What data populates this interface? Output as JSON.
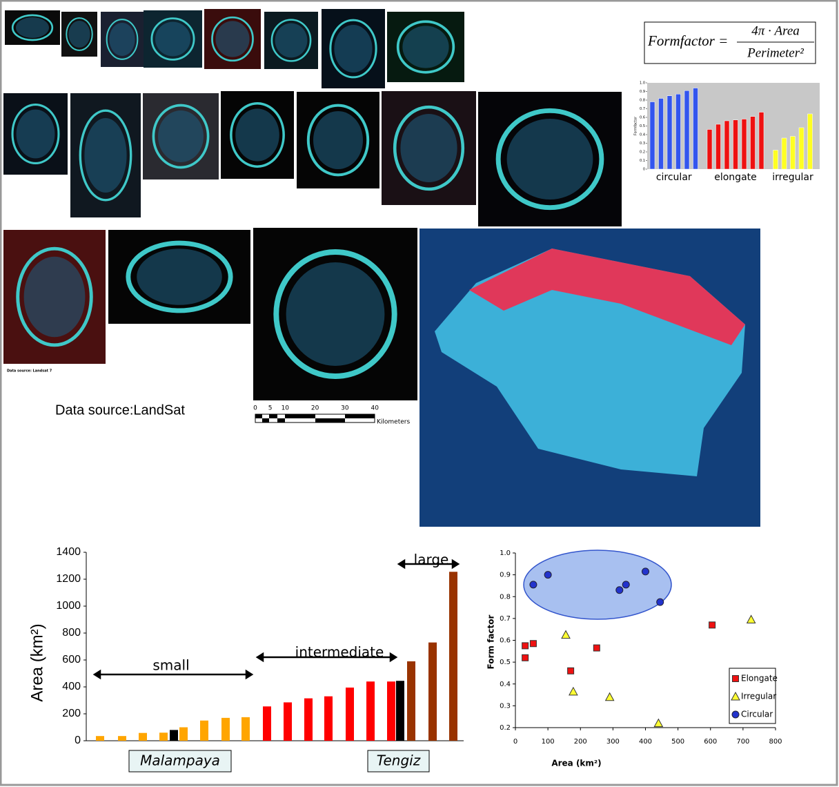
{
  "formula": {
    "lhs": "Formfactor =",
    "numerator": "4π · Area",
    "denominator": "Perimeter²"
  },
  "source_note": "Data source: Landsat 7",
  "source": "Data source:LandSat",
  "scale_bar": {
    "ticks": [
      0,
      5,
      10,
      20,
      30,
      40
    ],
    "unit": "Kilometers"
  },
  "chart_data": [
    {
      "type": "grouped-bar",
      "y_label": "Formfactor",
      "ylim": [
        0,
        1
      ],
      "yticks": [
        0,
        0.1,
        0.2,
        0.3,
        0.4,
        0.5,
        0.6,
        0.7,
        0.8,
        0.9,
        {
          "value": 1,
          "label": "1.0"
        }
      ],
      "series": [
        {
          "name": "circular",
          "color": "#3355ee",
          "values": [
            0.78,
            0.82,
            0.85,
            0.87,
            0.91,
            0.94
          ]
        },
        {
          "name": "elongate",
          "color": "#ee1111",
          "values": [
            0.46,
            0.52,
            0.56,
            0.57,
            0.58,
            0.61,
            0.66
          ]
        },
        {
          "name": "irregular",
          "color": "#ffff22",
          "values": [
            0.22,
            0.36,
            0.38,
            0.48,
            0.64
          ]
        }
      ]
    },
    {
      "type": "bar",
      "y_label": "Area (km²)",
      "ylim": [
        0,
        1400
      ],
      "yticks": [
        0,
        200,
        400,
        600,
        800,
        1000,
        1200,
        1400
      ],
      "values": [
        35,
        35,
        58,
        60,
        80,
        100,
        150,
        170,
        175,
        255,
        285,
        315,
        330,
        395,
        440,
        440,
        445,
        590,
        730,
        1255
      ],
      "colors": [
        "#ffa500",
        "#ffa500",
        "#ffa500",
        "#ffa500",
        "#000000",
        "#ffa500",
        "#ffa500",
        "#ffa500",
        "#ffa500",
        "#ff0000",
        "#ff0000",
        "#ff0000",
        "#ff0000",
        "#ff0000",
        "#ff0000",
        "#ff0000",
        "#000000",
        "#993300",
        "#993300",
        "#993300"
      ],
      "annotations": [
        "small",
        "intermediate",
        "large"
      ],
      "highlights": [
        "Malampaya",
        "Tengiz"
      ]
    },
    {
      "type": "scatter",
      "x_label": "Area (km²)",
      "y_label": "Form factor",
      "xlim": [
        0,
        800
      ],
      "xticks": [
        0,
        100,
        200,
        300,
        400,
        500,
        600,
        700,
        800
      ],
      "ylim": [
        0.2,
        1
      ],
      "yticks": [
        0.2,
        0.3,
        0.4,
        0.5,
        0.6,
        0.7,
        0.8,
        0.9,
        {
          "value": 1,
          "label": "1.0"
        }
      ],
      "series": [
        {
          "name": "Elongate",
          "color": "#ee1111",
          "marker": "square",
          "x": [
            30,
            30,
            55,
            170,
            250,
            605
          ],
          "values": [
            0.52,
            0.575,
            0.585,
            0.46,
            0.565,
            0.67
          ]
        },
        {
          "name": "Irregular",
          "color": "#ffff33",
          "marker": "triangle",
          "x": [
            155,
            178,
            290,
            440,
            725
          ],
          "values": [
            0.625,
            0.365,
            0.34,
            0.22,
            0.695
          ]
        },
        {
          "name": "Circular",
          "color": "#2233cc",
          "marker": "circle",
          "x": [
            55,
            100,
            320,
            340,
            400,
            445
          ],
          "values": [
            0.855,
            0.9,
            0.83,
            0.855,
            0.915,
            0.775
          ]
        }
      ]
    }
  ]
}
